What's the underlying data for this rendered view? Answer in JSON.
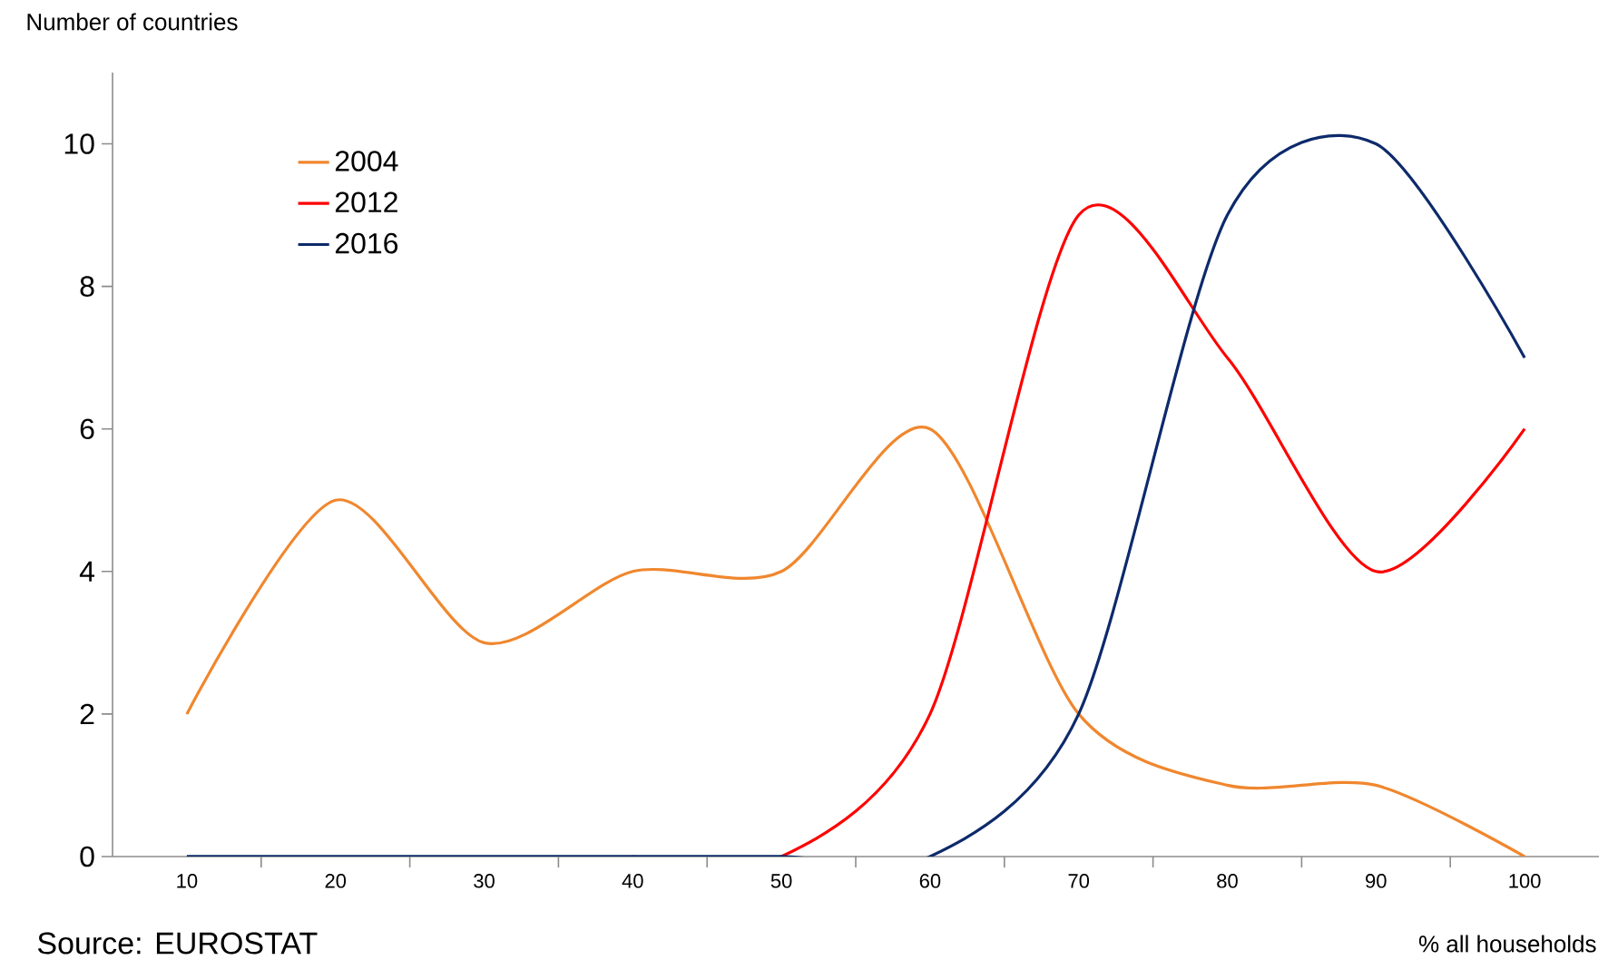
{
  "chart_data": {
    "type": "line",
    "ylabel": "Number of countries",
    "xlabel": "% all households",
    "annotations": [
      "Source: EUROSTAT"
    ],
    "categories": [
      "10",
      "20",
      "30",
      "40",
      "50",
      "60",
      "70",
      "80",
      "90",
      "100"
    ],
    "series": [
      {
        "name": "2004",
        "color": "#f0872e",
        "values": [
          2,
          5,
          3,
          4,
          4,
          6,
          2,
          1,
          1,
          0
        ]
      },
      {
        "name": "2012",
        "color": "#ff0000",
        "values": [
          null,
          null,
          null,
          0,
          0,
          2,
          9,
          7,
          4,
          6
        ]
      },
      {
        "name": "2016",
        "color": "#0d2a6b",
        "values": [
          0,
          0,
          0,
          0,
          0,
          0,
          2,
          9,
          10,
          7
        ]
      }
    ],
    "ylim": [
      0,
      11
    ],
    "yticks": [
      0,
      2,
      4,
      6,
      8,
      10
    ],
    "legend": "top left",
    "line_style": "solid"
  }
}
